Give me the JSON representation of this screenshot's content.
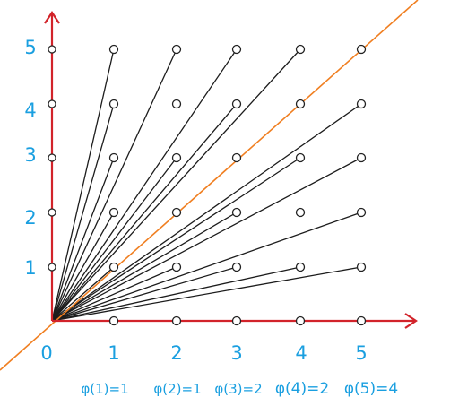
{
  "diagram": {
    "title": "",
    "x_ticks": [
      "0",
      "1",
      "2",
      "3",
      "4",
      "5"
    ],
    "y_ticks": [
      "1",
      "2",
      "3",
      "4",
      "5"
    ],
    "phi_labels": [
      "φ(1)=1",
      "φ(2)=1",
      "φ(3)=2",
      "φ(4)=2",
      "φ(5)=4"
    ],
    "lattice": {
      "x_min": 1,
      "x_max": 5,
      "y_min": 0,
      "y_max": 5
    },
    "rays_to": [
      [
        1,
        1
      ],
      [
        1,
        5
      ],
      [
        2,
        5
      ],
      [
        3,
        5
      ],
      [
        4,
        5
      ],
      [
        5,
        4
      ],
      [
        5,
        3
      ],
      [
        5,
        2
      ],
      [
        5,
        1
      ],
      [
        4,
        3
      ],
      [
        4,
        1
      ],
      [
        3,
        2
      ],
      [
        3,
        1
      ],
      [
        2,
        1
      ],
      [
        1,
        4
      ],
      [
        1,
        3
      ],
      [
        1,
        2
      ],
      [
        2,
        3
      ],
      [
        3,
        4
      ],
      [
        1,
        0
      ]
    ],
    "diagonal_line": {
      "slope": 1,
      "color": "#f07f21"
    },
    "axis_color": "#d2232a",
    "point_color": "#222222",
    "label_color": "#1a9fe0"
  }
}
